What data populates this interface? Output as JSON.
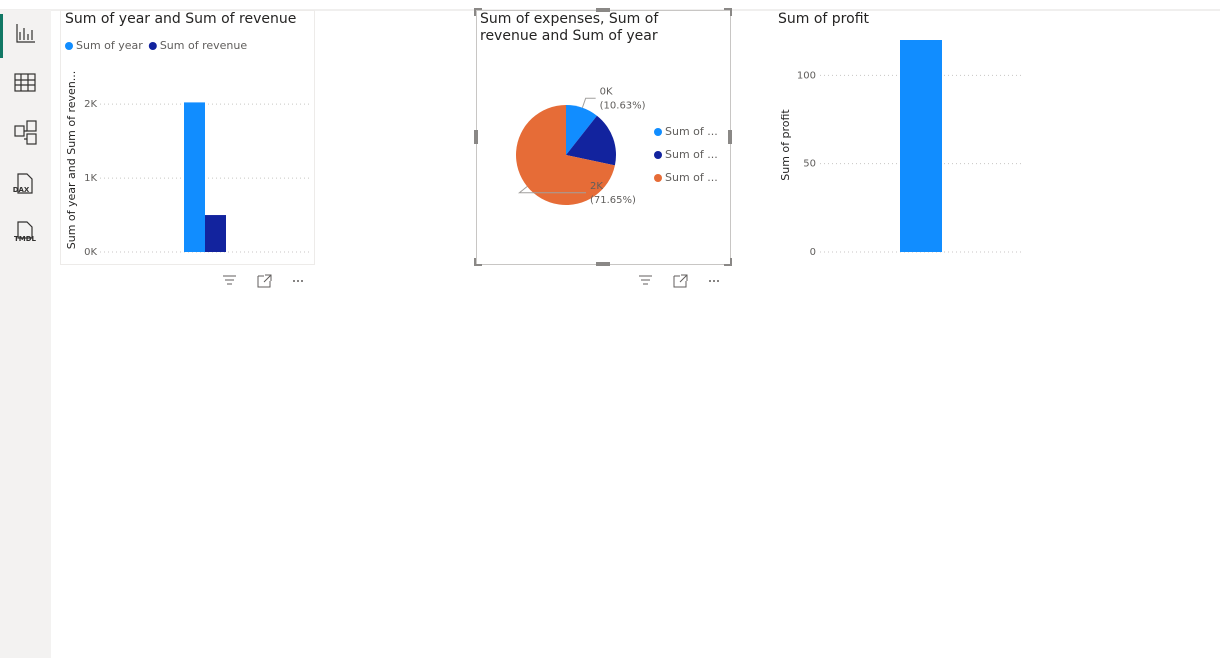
{
  "sidebar": {
    "labels": [
      "DAX",
      "TMDL"
    ]
  },
  "chart_data": [
    {
      "type": "bar",
      "title": "Sum of year and Sum of revenue",
      "y_label": "Sum of year and Sum of reven...",
      "categories": [
        null
      ],
      "series": [
        {
          "name": "Sum of year",
          "color": "#118dff",
          "values": [
            2024
          ]
        },
        {
          "name": "Sum of revenue",
          "color": "#12239e",
          "values": [
            500
          ]
        }
      ],
      "ylim": [
        0,
        2300
      ],
      "yticks": [
        {
          "value": 0,
          "label": "0K"
        },
        {
          "value": 1000,
          "label": "1K"
        },
        {
          "value": 2000,
          "label": "2K"
        }
      ],
      "grid": true
    },
    {
      "type": "pie",
      "title": "Sum of expenses, Sum of revenue and Sum of year",
      "categories": [
        "Sum of ...",
        "Sum of ...",
        "Sum of ..."
      ],
      "colors": [
        "#118dff",
        "#12239e",
        "#e66c37"
      ],
      "values": [
        300,
        500,
        2024
      ],
      "value_labels": [
        "0K",
        null,
        "2K"
      ],
      "percent_labels": [
        "(10.63%)",
        null,
        "(71.65%)"
      ]
    },
    {
      "type": "bar",
      "title": "Sum of profit",
      "y_label": "Sum of profit",
      "categories": [
        null
      ],
      "values": [
        120
      ],
      "color": "#118dff",
      "ylim": [
        0,
        120
      ],
      "yticks": [
        0,
        50,
        100
      ],
      "grid": true
    }
  ]
}
